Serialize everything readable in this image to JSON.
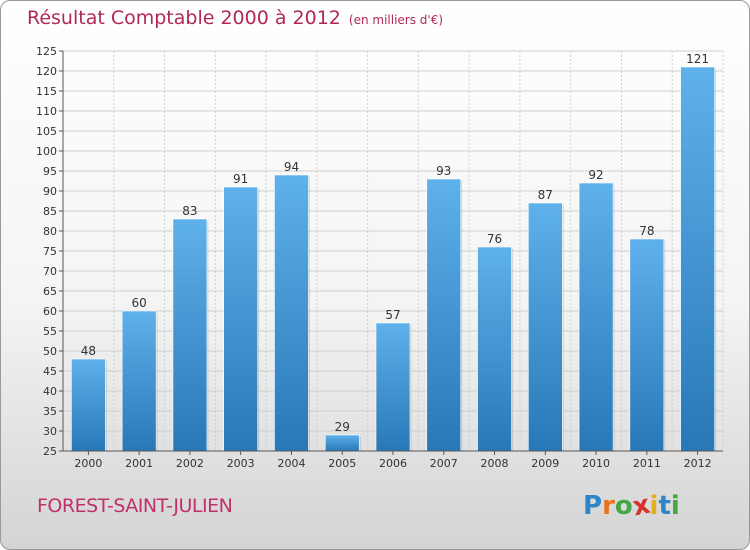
{
  "chart_data": {
    "type": "bar",
    "title": "Résultat Comptable 2000 à 2012",
    "subtitle": "(en milliers d'€)",
    "xlabel": "",
    "ylabel": "",
    "categories": [
      "2000",
      "2001",
      "2002",
      "2003",
      "2004",
      "2005",
      "2006",
      "2007",
      "2008",
      "2009",
      "2010",
      "2011",
      "2012"
    ],
    "values": [
      48,
      60,
      83,
      91,
      94,
      29,
      57,
      93,
      76,
      87,
      92,
      78,
      121
    ],
    "ylim": [
      25,
      125
    ],
    "yticks": [
      25,
      30,
      35,
      40,
      45,
      50,
      55,
      60,
      65,
      70,
      75,
      80,
      85,
      90,
      95,
      100,
      105,
      110,
      115,
      120,
      125
    ],
    "grid": true,
    "legend": "none"
  },
  "footer": {
    "place": "FOREST-SAINT-JULIEN",
    "logo_letters": [
      "P",
      "r",
      "o",
      "x",
      "i",
      "t",
      "i"
    ]
  },
  "colors": {
    "title": "#b0285a",
    "place": "#c0306a",
    "bar_top": "#5eb1ea",
    "bar_bottom": "#2878b8",
    "grid": "#cfcfcf",
    "axis": "#555555",
    "logo": [
      "#2e86c9",
      "#e8731a",
      "#43a843",
      "#d6322b",
      "#e0b020",
      "#2e86c9",
      "#43a843"
    ]
  }
}
